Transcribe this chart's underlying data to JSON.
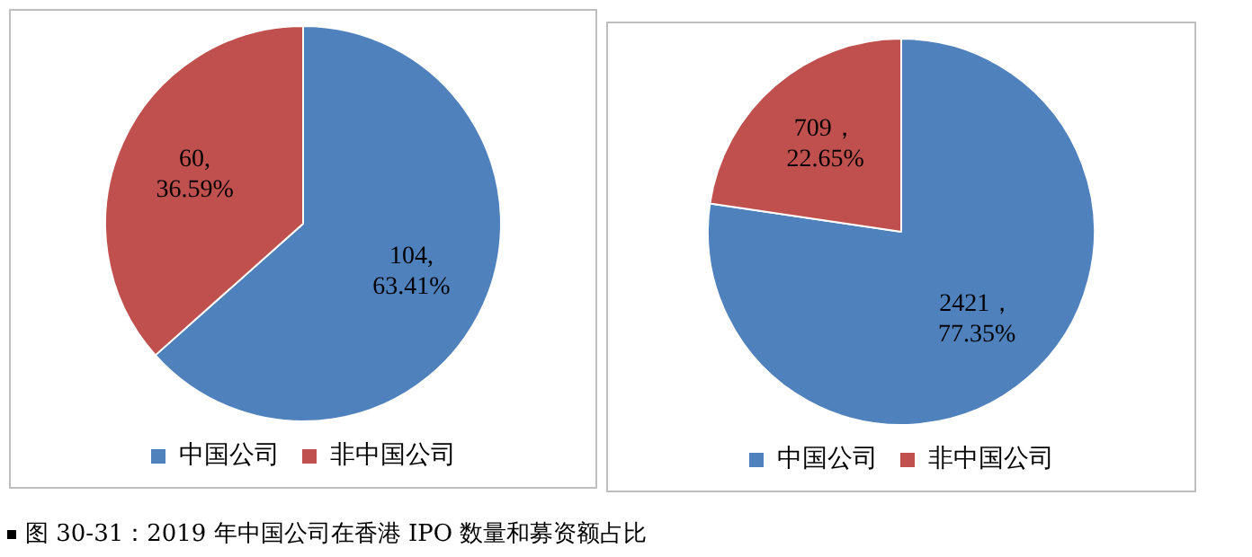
{
  "chart_data": [
    {
      "type": "pie",
      "categories": [
        "中国公司",
        "非中国公司"
      ],
      "values": [
        104,
        60
      ],
      "colors": [
        "#4f81bd",
        "#c0504d"
      ],
      "value_labels": [
        "104,\n63.41%",
        "60,\n36.59%"
      ],
      "legend": "bottom",
      "annotations": [
        "图 30-31：2019 年中国公司在香港 IPO 数量和募资额占比"
      ]
    },
    {
      "type": "pie",
      "categories": [
        "中国公司",
        "非中国公司"
      ],
      "values": [
        2421,
        709
      ],
      "colors": [
        "#4f81bd",
        "#c0504d"
      ],
      "value_labels": [
        "2421，\n77.35%",
        "709，\n22.65%"
      ],
      "legend": "bottom"
    }
  ]
}
